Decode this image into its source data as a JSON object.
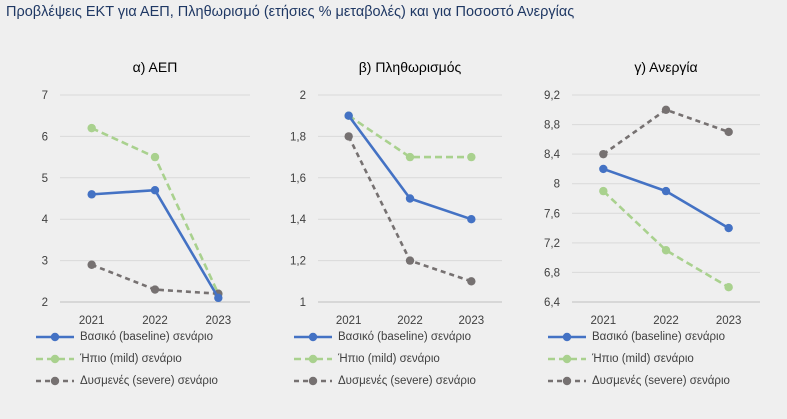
{
  "page_title": "Προβλέψεις ΕΚΤ για ΑΕΠ, Πληθωρισμό (ετήσιες % μεταβολές) και για Ποσοστό Ανεργίας",
  "colors": {
    "baseline": "#4472c4",
    "mild": "#a9d18e",
    "severe": "#767171",
    "grid": "#d9d9d9",
    "axis": "#bfbfbf",
    "text": "#404040",
    "title": "#1f3864"
  },
  "chart_data": [
    {
      "type": "line",
      "title": "α) ΑΕΠ",
      "x": [
        "2021",
        "2022",
        "2023"
      ],
      "ylim": [
        2,
        7
      ],
      "yticks": [
        "2",
        "3",
        "4",
        "5",
        "6",
        "7"
      ],
      "grid": true,
      "legend_position": "bottom",
      "series": [
        {
          "name": "Βασικό (baseline) σενάριο",
          "key": "baseline",
          "values": [
            4.6,
            4.7,
            2.1
          ]
        },
        {
          "name": "Ήπιο (mild) σενάριο",
          "key": "mild",
          "values": [
            6.2,
            5.5,
            2.2
          ]
        },
        {
          "name": "Δυσμενές (severe) σενάριο",
          "key": "severe",
          "values": [
            2.9,
            2.3,
            2.2
          ]
        }
      ]
    },
    {
      "type": "line",
      "title": "β) Πληθωρισμός",
      "x": [
        "2021",
        "2022",
        "2023"
      ],
      "ylim": [
        1,
        2
      ],
      "yticks": [
        "1",
        "1,2",
        "1,4",
        "1,6",
        "1,8",
        "2"
      ],
      "grid": true,
      "legend_position": "bottom",
      "series": [
        {
          "name": "Βασικό (baseline) σενάριο",
          "key": "baseline",
          "values": [
            1.9,
            1.5,
            1.4
          ]
        },
        {
          "name": "Ήπιο (mild) σενάριο",
          "key": "mild",
          "values": [
            1.9,
            1.7,
            1.7
          ]
        },
        {
          "name": "Δυσμενές (severe) σενάριο",
          "key": "severe",
          "values": [
            1.8,
            1.2,
            1.1
          ]
        }
      ]
    },
    {
      "type": "line",
      "title": "γ) Ανεργία",
      "x": [
        "2021",
        "2022",
        "2023"
      ],
      "ylim": [
        6.4,
        9.2
      ],
      "yticks": [
        "6,4",
        "6,8",
        "7,2",
        "7,6",
        "8",
        "8,4",
        "8,8",
        "9,2"
      ],
      "grid": true,
      "legend_position": "bottom",
      "series": [
        {
          "name": "Βασικό (baseline) σενάριο",
          "key": "baseline",
          "values": [
            8.2,
            7.9,
            7.4
          ]
        },
        {
          "name": "Ήπιο (mild) σενάριο",
          "key": "mild",
          "values": [
            7.9,
            7.1,
            6.6
          ]
        },
        {
          "name": "Δυσμενές (severe) σενάριο",
          "key": "severe",
          "values": [
            8.4,
            9.0,
            8.7
          ]
        }
      ]
    }
  ]
}
